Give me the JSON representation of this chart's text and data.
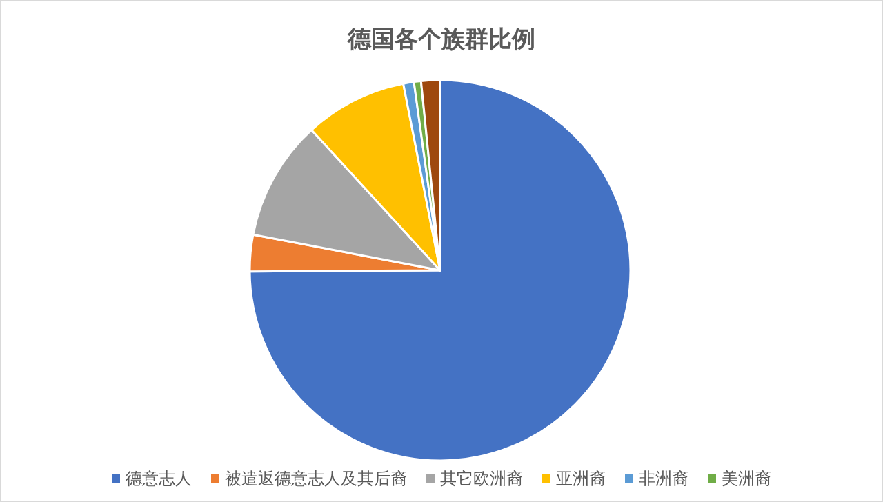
{
  "chart_data": {
    "type": "pie",
    "title": "德国各个族群比例",
    "categories": [
      "德意志人",
      "被遣返德意志人及其后裔",
      "其它欧洲裔",
      "亚洲裔",
      "非洲裔",
      "美洲裔",
      null
    ],
    "values": [
      74.9,
      3.1,
      10.2,
      8.7,
      0.9,
      0.6,
      1.6
    ],
    "colors": [
      "#4472c4",
      "#ed7d31",
      "#a5a5a5",
      "#ffc000",
      "#5b9bd5",
      "#70ad47",
      "#9e480e"
    ],
    "legend": "bottom"
  }
}
